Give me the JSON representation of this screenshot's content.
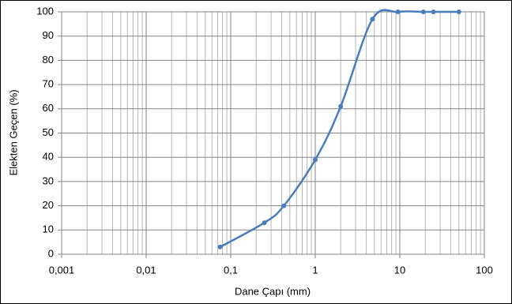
{
  "chart_data": {
    "type": "line",
    "x_label": "Dane Çapı (mm)",
    "y_label": "Elekten Geçen (%)",
    "x": [
      0.075,
      0.25,
      0.425,
      1,
      2,
      4.75,
      9.5,
      19,
      25,
      50
    ],
    "series": [
      {
        "color": "#4a7ebb",
        "values": [
          3,
          13,
          20,
          39,
          61,
          97,
          100,
          100,
          100,
          100
        ]
      }
    ],
    "x_log": true,
    "smooth": true,
    "markers": true,
    "xlim": [
      0.001,
      100
    ],
    "xticks": [
      {
        "value": 0.001,
        "label": "0,001"
      },
      {
        "value": 0.01,
        "label": "0,01"
      },
      {
        "value": 0.1,
        "label": "0,1"
      },
      1,
      10,
      100
    ],
    "ylim": [
      0,
      100
    ],
    "yticks": [
      0,
      10,
      20,
      30,
      40,
      50,
      60,
      70,
      80,
      90,
      100
    ],
    "grid": true,
    "minor_grid": true
  }
}
